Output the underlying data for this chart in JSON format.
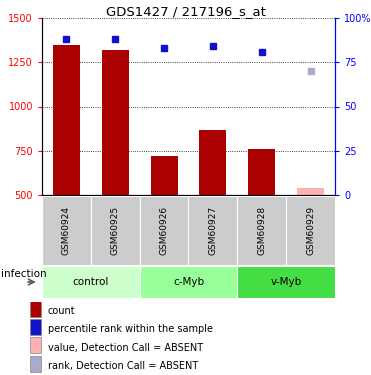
{
  "title": "GDS1427 / 217196_s_at",
  "samples": [
    "GSM60924",
    "GSM60925",
    "GSM60926",
    "GSM60927",
    "GSM60928",
    "GSM60929"
  ],
  "bar_values": [
    1350,
    1320,
    720,
    870,
    760,
    540
  ],
  "bar_colors": [
    "#aa0000",
    "#aa0000",
    "#aa0000",
    "#aa0000",
    "#aa0000",
    "#ffb0b0"
  ],
  "rank_values": [
    88,
    88,
    83,
    84,
    81,
    70
  ],
  "rank_colors": [
    "#1111cc",
    "#1111cc",
    "#1111cc",
    "#1111cc",
    "#1111cc",
    "#aaaacc"
  ],
  "ylim_left": [
    500,
    1500
  ],
  "ylim_right": [
    0,
    100
  ],
  "yticks_left": [
    500,
    750,
    1000,
    1250,
    1500
  ],
  "yticks_right": [
    0,
    25,
    50,
    75,
    100
  ],
  "ytick_labels_right": [
    "0",
    "25",
    "50",
    "75",
    "100%"
  ],
  "groups": [
    {
      "label": "control",
      "indices": [
        0,
        1
      ],
      "color": "#ccffcc"
    },
    {
      "label": "c-Myb",
      "indices": [
        2,
        3
      ],
      "color": "#99ff99"
    },
    {
      "label": "v-Myb",
      "indices": [
        4,
        5
      ],
      "color": "#44dd44"
    }
  ],
  "infection_label": "infection",
  "bar_width": 0.55,
  "background_color": "#ffffff",
  "legend_items": [
    {
      "label": "count",
      "color": "#aa0000"
    },
    {
      "label": "percentile rank within the sample",
      "color": "#1111cc"
    },
    {
      "label": "value, Detection Call = ABSENT",
      "color": "#ffb0b0"
    },
    {
      "label": "rank, Detection Call = ABSENT",
      "color": "#aaaacc"
    }
  ]
}
